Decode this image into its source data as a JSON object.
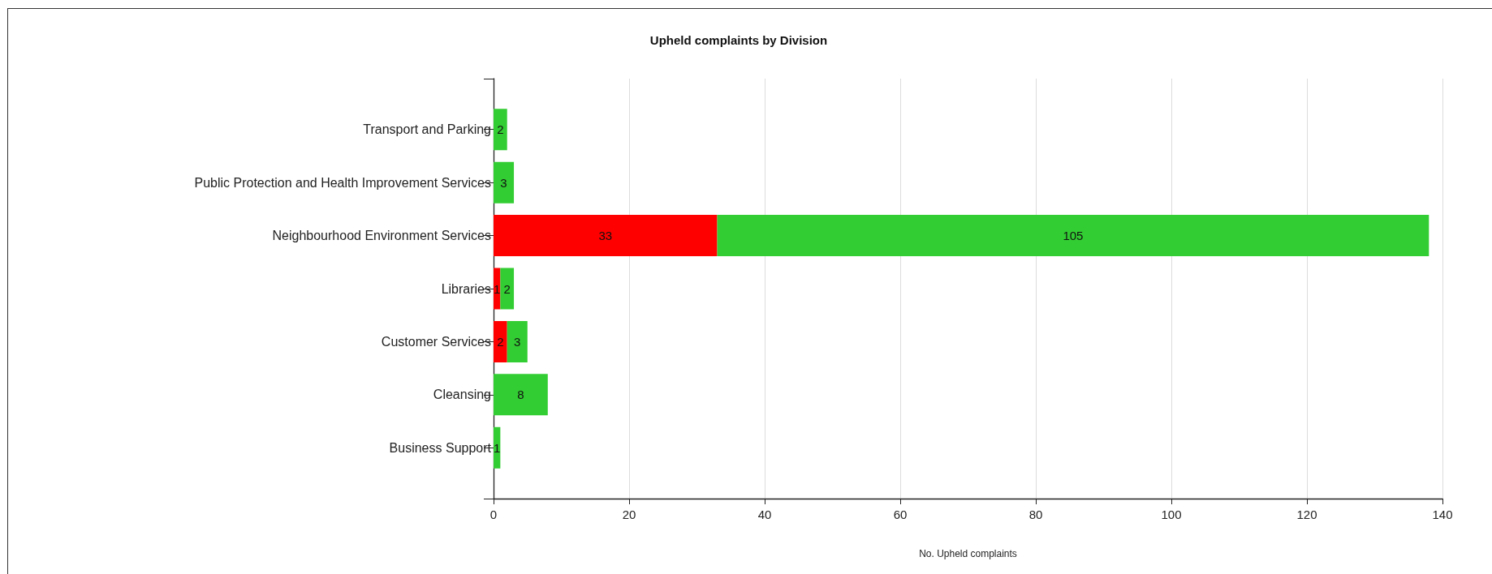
{
  "chart_data": {
    "type": "bar",
    "title": "Upheld complaints by Division",
    "xlabel": "No. Upheld complaints",
    "orientation": "horizontal",
    "stacked": true,
    "categories": [
      "Transport and Parking",
      "Public Protection and Health Improvement Services",
      "Neighbourhood Environment Services",
      "Libraries",
      "Customer Services",
      "Cleansing",
      "Business Support"
    ],
    "series": [
      {
        "color": "#ff0000",
        "values": [
          null,
          null,
          33,
          1,
          2,
          null,
          null
        ]
      },
      {
        "color": "#32cd32",
        "values": [
          2,
          3,
          105,
          2,
          3,
          8,
          1
        ]
      }
    ],
    "xlim": [
      0,
      140
    ],
    "xticks": [
      0,
      20,
      40,
      60,
      80,
      100,
      120,
      140
    ],
    "grid": "x",
    "data_labels": true
  }
}
